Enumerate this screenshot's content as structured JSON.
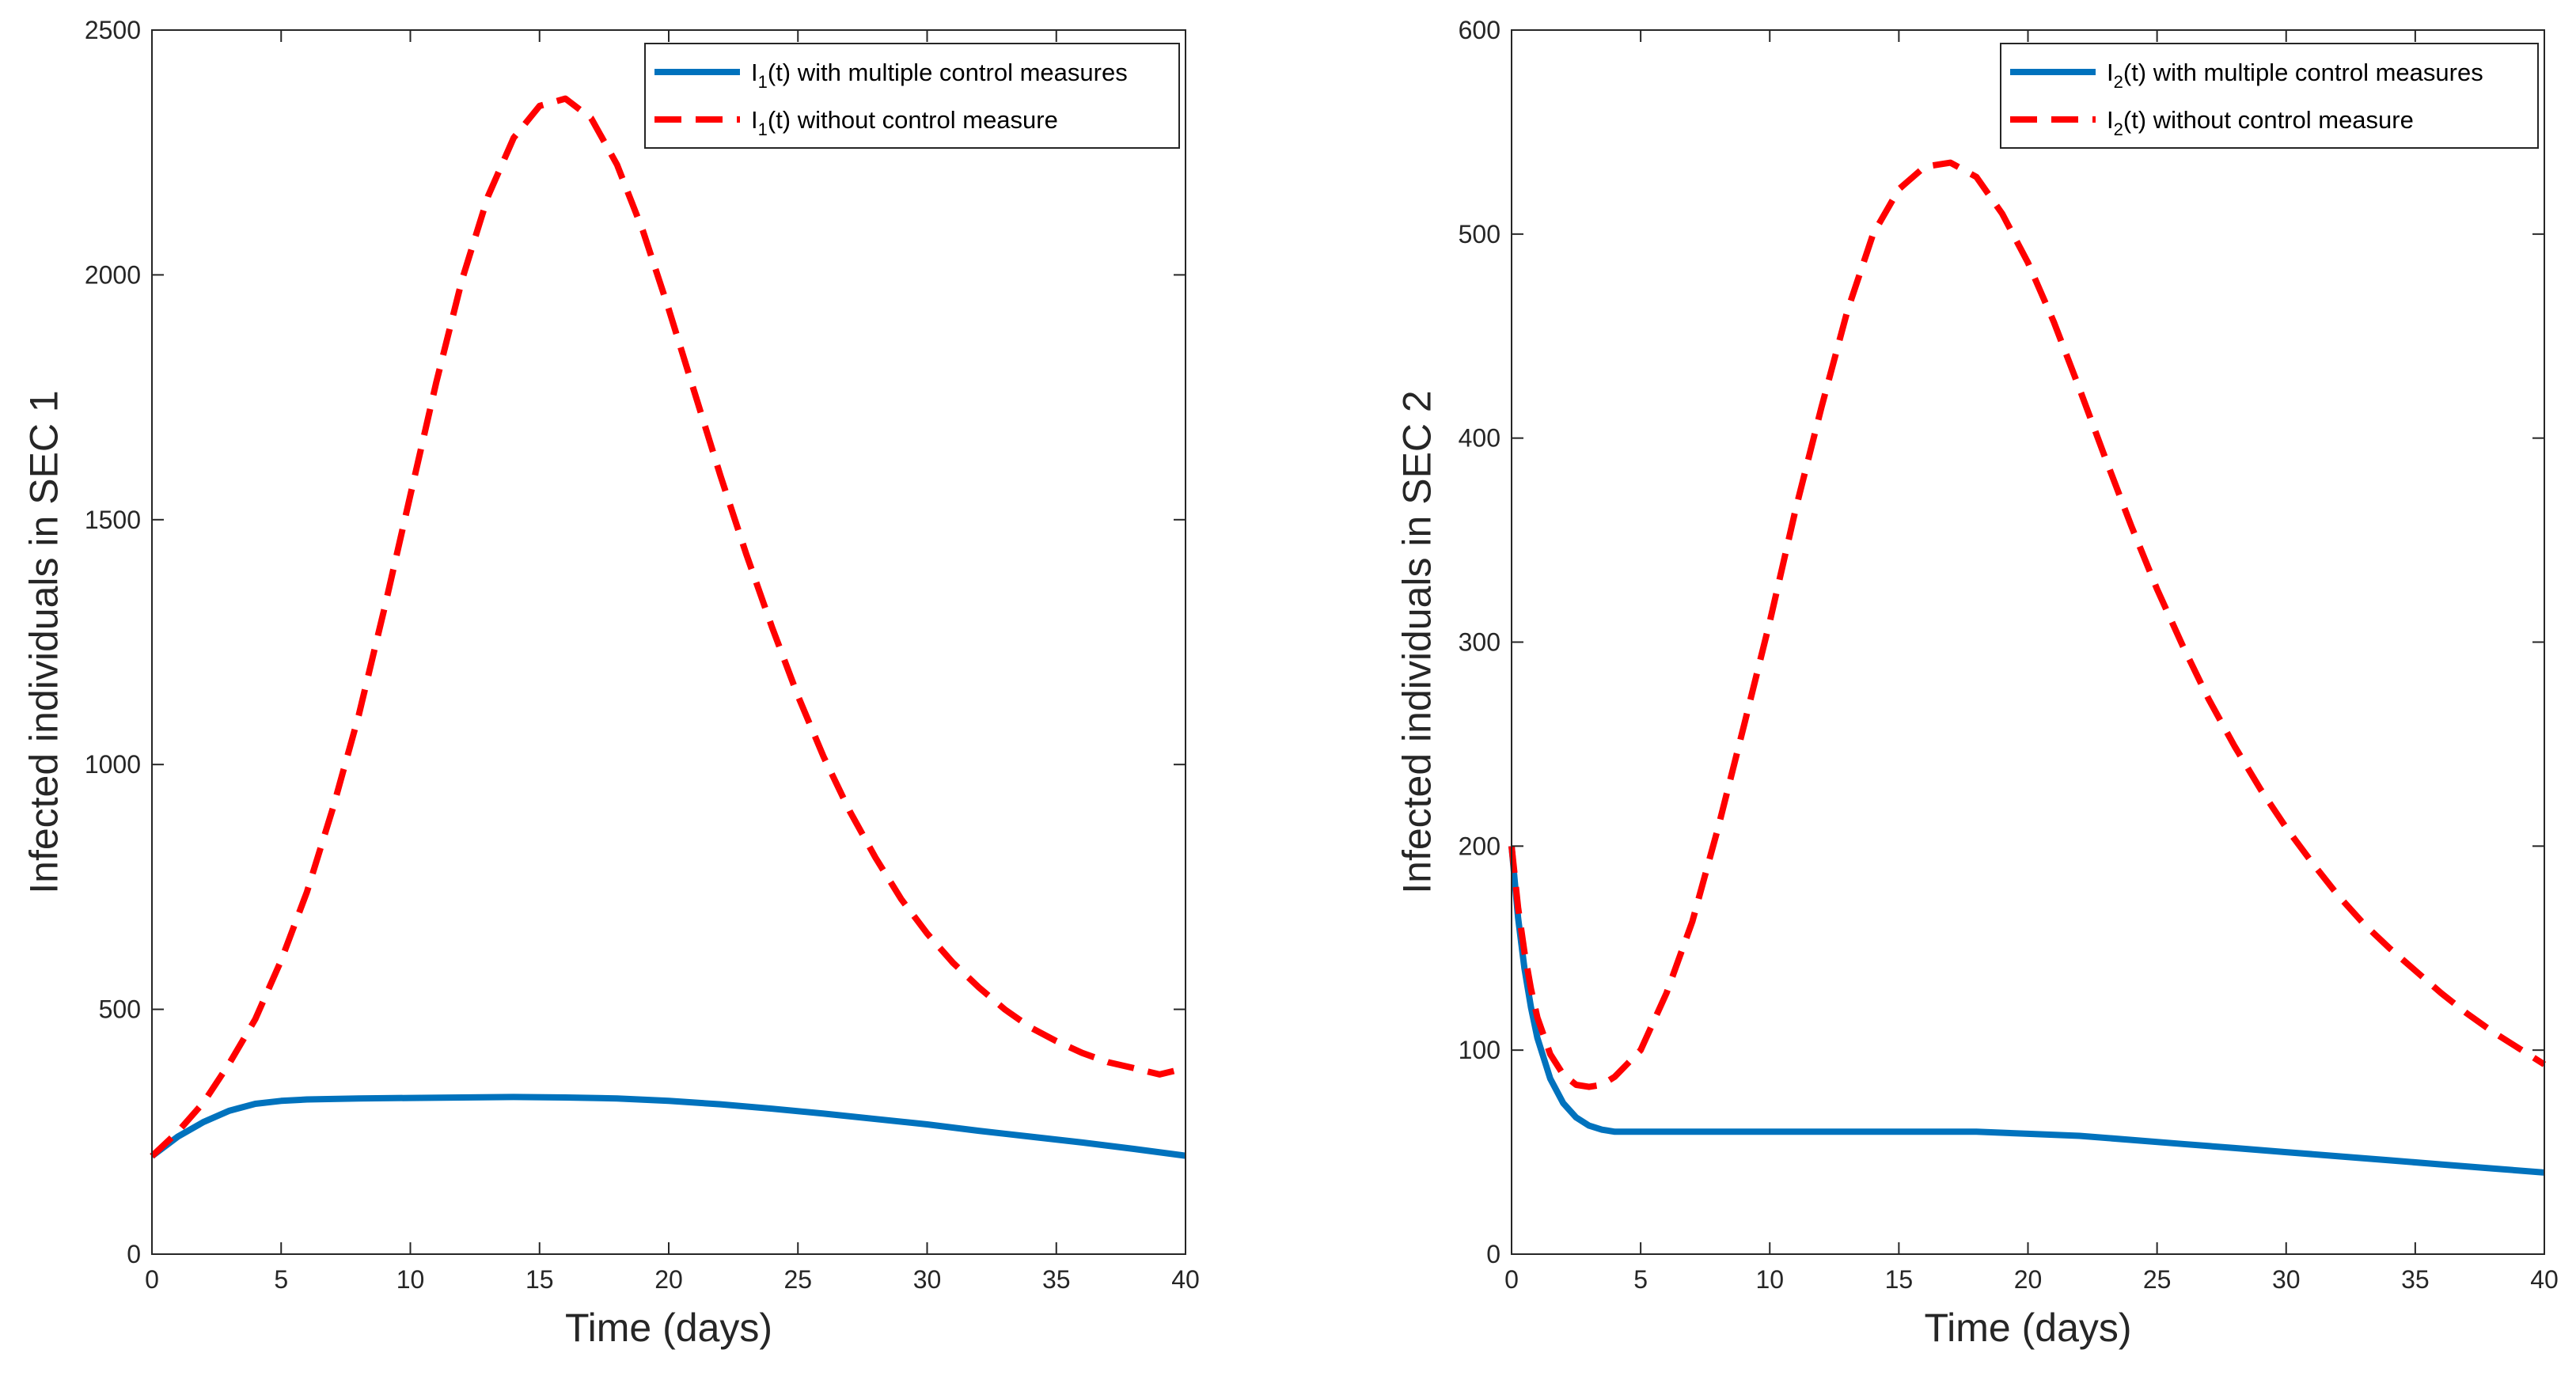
{
  "colors": {
    "controlled": "#0072BD",
    "uncontrolled": "#FF0000",
    "axis": "#262626"
  },
  "chart_data": [
    {
      "type": "line",
      "title": "",
      "xlabel": "Time (days)",
      "ylabel": "Infected individuals in SEC 1",
      "xlim": [
        0,
        40
      ],
      "ylim": [
        0,
        2500
      ],
      "xticks": [
        0,
        5,
        10,
        15,
        20,
        25,
        30,
        35,
        40
      ],
      "yticks": [
        0,
        500,
        1000,
        1500,
        2000,
        2500
      ],
      "legend_position": "top-right",
      "series": [
        {
          "name": "I1(t) with multiple control measures",
          "legend": {
            "main": "I",
            "sub": "1",
            "rest": "(t) with multiple control measures"
          },
          "style": "solid",
          "x": [
            0,
            1,
            2,
            3,
            4,
            5,
            6,
            8,
            10,
            12,
            14,
            16,
            18,
            20,
            22,
            24,
            26,
            28,
            30,
            32,
            34,
            36,
            38,
            40
          ],
          "y": [
            200,
            240,
            270,
            293,
            307,
            313,
            316,
            318,
            319,
            320,
            321,
            320,
            318,
            313,
            306,
            297,
            287,
            276,
            265,
            252,
            240,
            228,
            215,
            201
          ]
        },
        {
          "name": "I1(t) without control measure",
          "legend": {
            "main": "I",
            "sub": "1",
            "rest": "(t) without control measure"
          },
          "style": "dashed",
          "x": [
            0,
            1,
            2,
            3,
            4,
            5,
            6,
            7,
            8,
            9,
            10,
            11,
            12,
            13,
            14,
            15,
            16,
            17,
            18,
            19,
            20,
            21,
            22,
            23,
            24,
            25,
            26,
            27,
            28,
            29,
            30,
            31,
            32,
            33,
            34,
            35,
            36,
            37,
            38,
            39,
            40
          ],
          "y": [
            200,
            250,
            310,
            390,
            480,
            600,
            740,
            910,
            1100,
            1320,
            1550,
            1780,
            1990,
            2160,
            2280,
            2345,
            2360,
            2320,
            2225,
            2090,
            1930,
            1760,
            1590,
            1430,
            1280,
            1140,
            1015,
            905,
            810,
            725,
            655,
            595,
            545,
            500,
            463,
            435,
            411,
            392,
            380,
            367,
            380
          ]
        }
      ]
    },
    {
      "type": "line",
      "title": "",
      "xlabel": "Time (days)",
      "ylabel": "Infected individuals in SEC 2",
      "xlim": [
        0,
        40
      ],
      "ylim": [
        0,
        600
      ],
      "xticks": [
        0,
        5,
        10,
        15,
        20,
        25,
        30,
        35,
        40
      ],
      "yticks": [
        0,
        100,
        200,
        300,
        400,
        500,
        600
      ],
      "legend_position": "top-right",
      "series": [
        {
          "name": "I2(t) with multiple control measures",
          "legend": {
            "main": "I",
            "sub": "2",
            "rest": "(t) with multiple control measures"
          },
          "style": "solid",
          "x": [
            0,
            0.25,
            0.5,
            0.75,
            1,
            1.5,
            2,
            2.5,
            3,
            3.5,
            4,
            5,
            6,
            8,
            10,
            12,
            14,
            16,
            18,
            20,
            22,
            24,
            26,
            28,
            30,
            32,
            34,
            36,
            38,
            40
          ],
          "y": [
            200,
            165,
            140,
            121,
            106,
            86,
            74,
            67,
            63,
            61,
            60,
            60,
            60,
            60,
            60,
            60,
            60,
            60,
            60,
            59,
            58,
            56,
            54,
            52,
            50,
            48,
            46,
            44,
            42,
            40
          ]
        },
        {
          "name": "I2(t) without control measure",
          "legend": {
            "main": "I",
            "sub": "2",
            "rest": "(t) without control measure"
          },
          "style": "dashed",
          "x": [
            0,
            0.25,
            0.5,
            0.75,
            1,
            1.5,
            2,
            2.5,
            3,
            3.5,
            4,
            5,
            6,
            7,
            8,
            9,
            10,
            11,
            12,
            13,
            14,
            15,
            16,
            17,
            18,
            19,
            20,
            21,
            22,
            23,
            24,
            25,
            26,
            27,
            28,
            29,
            30,
            31,
            32,
            33,
            34,
            35,
            36,
            37,
            38,
            39,
            40
          ],
          "y": [
            200,
            170,
            148,
            130,
            116,
            98,
            88,
            83,
            82,
            83,
            87,
            100,
            128,
            163,
            209,
            259,
            310,
            365,
            415,
            462,
            500,
            522,
            533,
            535,
            528,
            510,
            486,
            457,
            424,
            390,
            357,
            326,
            298,
            272,
            249,
            228,
            209,
            192,
            176,
            162,
            150,
            139,
            128,
            118,
            109,
            101,
            93
          ]
        }
      ]
    }
  ]
}
